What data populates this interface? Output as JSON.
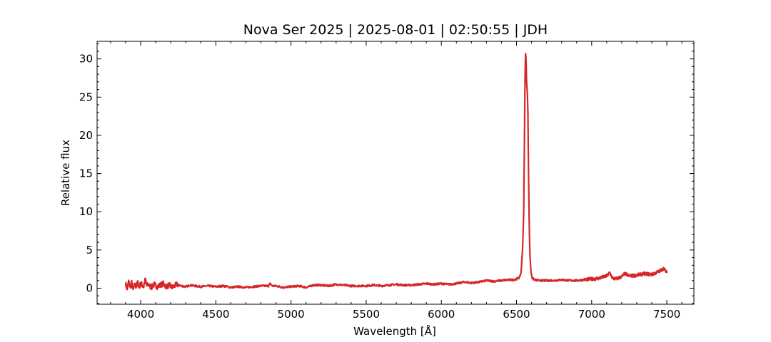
{
  "chart_data": {
    "type": "line",
    "title": "Nova Ser 2025 | 2025-08-01 | 02:50:55 | JDH",
    "xlabel": "Wavelength [Å]",
    "ylabel": "Relative flux",
    "xlim": [
      3710,
      7680
    ],
    "ylim": [
      -2.1,
      32.3
    ],
    "xticks": [
      4000,
      4500,
      5000,
      5500,
      6000,
      6500,
      7000,
      7500
    ],
    "yticks": [
      0,
      5,
      10,
      15,
      20,
      25,
      30
    ],
    "x_minor_step": 100,
    "y_minor_step": 1,
    "tick_direction": "in",
    "grid": false,
    "legend": "none",
    "series": [
      {
        "color": "#d62728",
        "wavelength_range": [
          3900,
          7500
        ],
        "points": [
          [
            3900,
            0.6
          ],
          [
            3910,
            -0.2
          ],
          [
            3920,
            0.9
          ],
          [
            3930,
            0.1
          ],
          [
            3940,
            0.7
          ],
          [
            3950,
            -0.3
          ],
          [
            3960,
            0.5
          ],
          [
            3970,
            0.2
          ],
          [
            3980,
            0.8
          ],
          [
            3990,
            0.0
          ],
          [
            4000,
            0.7
          ],
          [
            4010,
            0.4
          ],
          [
            4020,
            0.2
          ],
          [
            4030,
            1.2
          ],
          [
            4040,
            0.3
          ],
          [
            4050,
            0.5
          ],
          [
            4070,
            0.1
          ],
          [
            4090,
            0.5
          ],
          [
            4110,
            0.2
          ],
          [
            4130,
            0.4
          ],
          [
            4150,
            0.6
          ],
          [
            4170,
            0.2
          ],
          [
            4190,
            0.4
          ],
          [
            4210,
            0.1
          ],
          [
            4240,
            0.5
          ],
          [
            4270,
            0.3
          ],
          [
            4300,
            0.2
          ],
          [
            4330,
            0.4
          ],
          [
            4360,
            0.3
          ],
          [
            4400,
            0.2
          ],
          [
            4450,
            0.3
          ],
          [
            4500,
            0.2
          ],
          [
            4550,
            0.3
          ],
          [
            4600,
            0.1
          ],
          [
            4650,
            0.2
          ],
          [
            4700,
            0.1
          ],
          [
            4750,
            0.2
          ],
          [
            4800,
            0.3
          ],
          [
            4850,
            0.3
          ],
          [
            4861,
            0.6
          ],
          [
            4875,
            0.3
          ],
          [
            4900,
            0.3
          ],
          [
            4950,
            0.1
          ],
          [
            5000,
            0.2
          ],
          [
            5050,
            0.3
          ],
          [
            5100,
            0.1
          ],
          [
            5150,
            0.4
          ],
          [
            5200,
            0.4
          ],
          [
            5250,
            0.3
          ],
          [
            5300,
            0.5
          ],
          [
            5350,
            0.4
          ],
          [
            5400,
            0.3
          ],
          [
            5450,
            0.3
          ],
          [
            5500,
            0.3
          ],
          [
            5550,
            0.4
          ],
          [
            5600,
            0.3
          ],
          [
            5650,
            0.4
          ],
          [
            5700,
            0.5
          ],
          [
            5750,
            0.4
          ],
          [
            5800,
            0.4
          ],
          [
            5850,
            0.5
          ],
          [
            5900,
            0.6
          ],
          [
            5950,
            0.5
          ],
          [
            6000,
            0.6
          ],
          [
            6050,
            0.5
          ],
          [
            6100,
            0.6
          ],
          [
            6150,
            0.8
          ],
          [
            6200,
            0.7
          ],
          [
            6250,
            0.8
          ],
          [
            6300,
            1.0
          ],
          [
            6350,
            0.9
          ],
          [
            6400,
            1.0
          ],
          [
            6450,
            1.1
          ],
          [
            6480,
            1.1
          ],
          [
            6500,
            1.2
          ],
          [
            6520,
            1.4
          ],
          [
            6530,
            2.0
          ],
          [
            6540,
            5.0
          ],
          [
            6548,
            10.0
          ],
          [
            6553,
            20.0
          ],
          [
            6557,
            28.0
          ],
          [
            6560,
            30.7
          ],
          [
            6563,
            30.2
          ],
          [
            6567,
            27.0
          ],
          [
            6572,
            25.5
          ],
          [
            6576,
            23.0
          ],
          [
            6580,
            15.0
          ],
          [
            6585,
            8.0
          ],
          [
            6590,
            4.0
          ],
          [
            6597,
            2.0
          ],
          [
            6605,
            1.3
          ],
          [
            6620,
            1.1
          ],
          [
            6650,
            1.0
          ],
          [
            6700,
            1.0
          ],
          [
            6750,
            1.0
          ],
          [
            6800,
            1.1
          ],
          [
            6850,
            1.0
          ],
          [
            6900,
            1.0
          ],
          [
            6950,
            1.1
          ],
          [
            7000,
            1.2
          ],
          [
            7050,
            1.3
          ],
          [
            7100,
            1.6
          ],
          [
            7120,
            2.0
          ],
          [
            7140,
            1.3
          ],
          [
            7160,
            1.2
          ],
          [
            7200,
            1.5
          ],
          [
            7220,
            1.9
          ],
          [
            7250,
            1.6
          ],
          [
            7300,
            1.7
          ],
          [
            7350,
            1.9
          ],
          [
            7400,
            1.8
          ],
          [
            7450,
            2.2
          ],
          [
            7480,
            2.6
          ],
          [
            7500,
            2.0
          ]
        ]
      }
    ]
  }
}
